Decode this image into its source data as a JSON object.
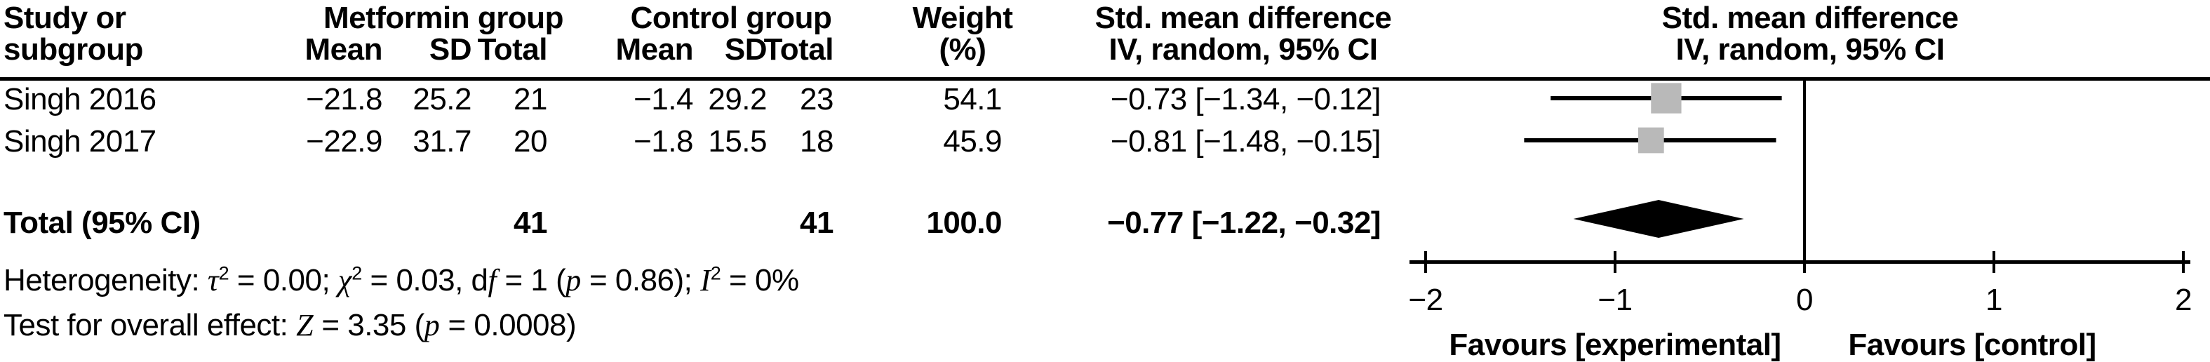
{
  "colors": {
    "marker": "#b9b9b9",
    "diamond": "#000000",
    "line": "#000000",
    "text": "#000000",
    "background": "#ffffff"
  },
  "table": {
    "header": {
      "study_line1": "Study or",
      "study_line2": "subgroup",
      "group1": "Metformin group",
      "group2": "Control group",
      "mean": "Mean",
      "sd": "SD",
      "total": "Total",
      "weight_line1": "Weight",
      "weight_line2": "(%)",
      "smd_line1": "Std. mean difference",
      "smd_line2": "IV, random, 95% CI"
    },
    "rows": [
      {
        "study": "Singh 2016",
        "mean1": "−21.8",
        "sd1": "25.2",
        "total1": "21",
        "mean2": "−1.4",
        "sd2": "29.2",
        "total2": "23",
        "weight": "54.1",
        "smd_ci": "−0.73 [−1.34, −0.12]"
      },
      {
        "study": "Singh 2017",
        "mean1": "−22.9",
        "sd1": "31.7",
        "total1": "20",
        "mean2": "−1.8",
        "sd2": "15.5",
        "total2": "18",
        "weight": "45.9",
        "smd_ci": "−0.81 [−1.48, −0.15]"
      }
    ],
    "total_row": {
      "label": "Total (95% CI)",
      "total1": "41",
      "total2": "41",
      "weight": "100.0",
      "smd_ci": "−0.77 [−1.22, −0.32]"
    }
  },
  "footnotes": {
    "heterogeneity": [
      {
        "t": "Heterogeneity: "
      },
      {
        "t": "τ",
        "math": true
      },
      {
        "t": "2",
        "sup": true
      },
      {
        "t": " = 0.00; "
      },
      {
        "t": "χ",
        "math": true
      },
      {
        "t": "2",
        "sup": true
      },
      {
        "t": " = 0.03, d"
      },
      {
        "t": "f",
        "math": true
      },
      {
        "t": " = 1 ("
      },
      {
        "t": "p",
        "math": true
      },
      {
        "t": " = 0.86); "
      },
      {
        "t": "I",
        "math": true
      },
      {
        "t": "2",
        "sup": true
      },
      {
        "t": " = 0%"
      }
    ],
    "overall_effect": [
      {
        "t": "Test for overall effect: "
      },
      {
        "t": "Z",
        "math": true
      },
      {
        "t": " = 3.35 ("
      },
      {
        "t": "p",
        "math": true
      },
      {
        "t": " = 0.0008)"
      }
    ]
  },
  "chart_data": {
    "type": "scatter",
    "subtype": "forest-plot",
    "title": "Std. mean difference, IV, random, 95% CI",
    "xlim": [
      -2,
      2
    ],
    "x_ticks": [
      -2,
      -1,
      0,
      1,
      2
    ],
    "x_tick_labels": [
      "−2",
      "−1",
      "0",
      "1",
      "2"
    ],
    "grid": false,
    "xlabel_left": "Favours [experimental]",
    "xlabel_right": "Favours [control]",
    "studies": [
      {
        "name": "Singh 2016",
        "smd": -0.73,
        "ci_low": -1.34,
        "ci_high": -0.12,
        "weight_pct": 54.1
      },
      {
        "name": "Singh 2017",
        "smd": -0.81,
        "ci_low": -1.48,
        "ci_high": -0.15,
        "weight_pct": 45.9
      }
    ],
    "total": {
      "name": "Total (95% CI)",
      "smd": -0.77,
      "ci_low": -1.22,
      "ci_high": -0.32,
      "weight_pct": 100.0
    }
  }
}
